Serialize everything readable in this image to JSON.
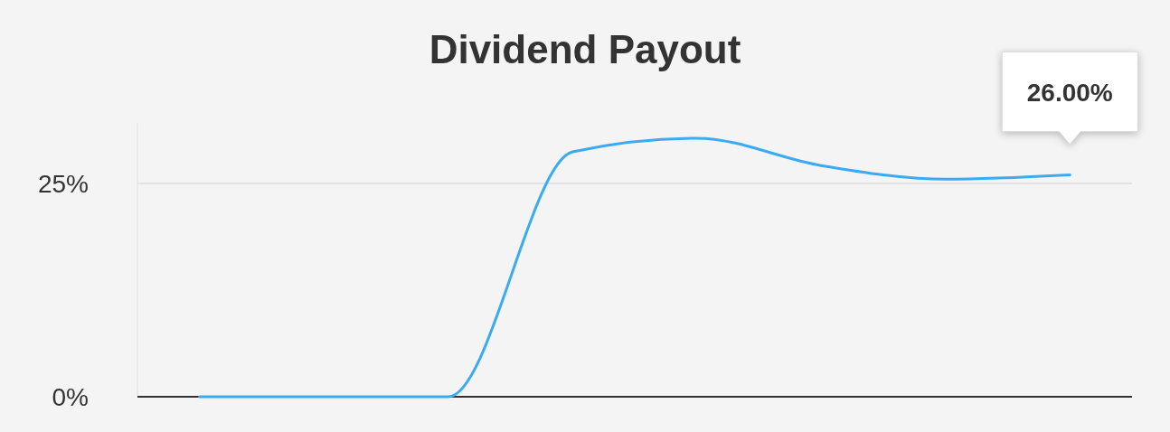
{
  "chart_data": {
    "type": "line",
    "title": "Dividend Payout",
    "categories": [
      null,
      null,
      null,
      null,
      null,
      null,
      null,
      null
    ],
    "series": [
      {
        "color": "#3aabf0",
        "values": [
          0,
          0,
          0,
          28.7,
          30.3,
          27.1,
          25.5,
          26.0
        ],
        "value_labels": [
          null,
          null,
          null,
          null,
          null,
          null,
          null,
          "26.00%"
        ]
      }
    ],
    "ylim": [
      0,
      32
    ],
    "yticks": [
      {
        "value": 0,
        "label": "0%"
      },
      {
        "value": 25,
        "label": "25%"
      }
    ],
    "grid": "y",
    "marker": "none",
    "line_style": "solid"
  }
}
